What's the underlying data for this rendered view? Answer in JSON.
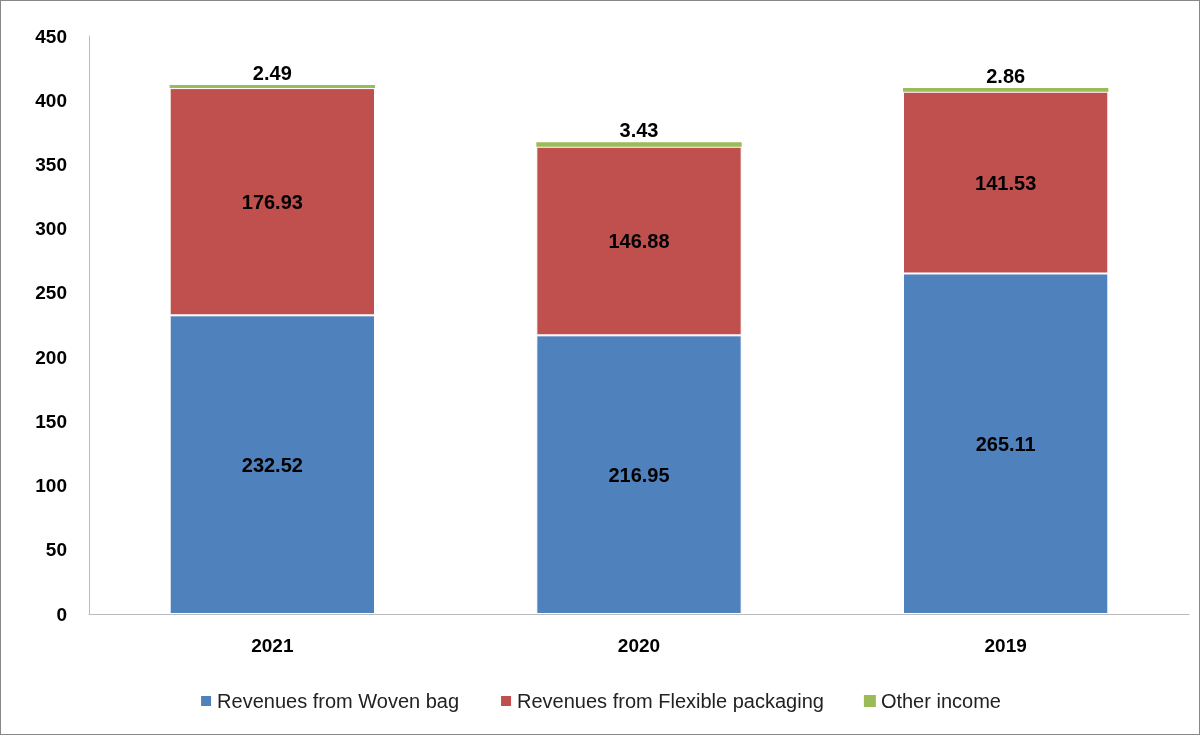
{
  "chart_data": {
    "type": "bar",
    "stacked": true,
    "categories": [
      "2021",
      "2020",
      "2019"
    ],
    "series": [
      {
        "name": "Revenues from Woven bag",
        "color": "#4f81bd",
        "values": [
          232.52,
          216.95,
          265.11
        ]
      },
      {
        "name": "Revenues from Flexible packaging",
        "color": "#c0504d",
        "values": [
          176.93,
          146.88,
          141.53
        ]
      },
      {
        "name": "Other income",
        "color": "#9bbb59",
        "values": [
          2.49,
          3.43,
          2.86
        ]
      }
    ],
    "ylim": [
      0,
      450
    ],
    "yticks": [
      0,
      50,
      100,
      150,
      200,
      250,
      300,
      350,
      400,
      450
    ],
    "data_labels": true,
    "legend": "bottom",
    "grid": false
  }
}
